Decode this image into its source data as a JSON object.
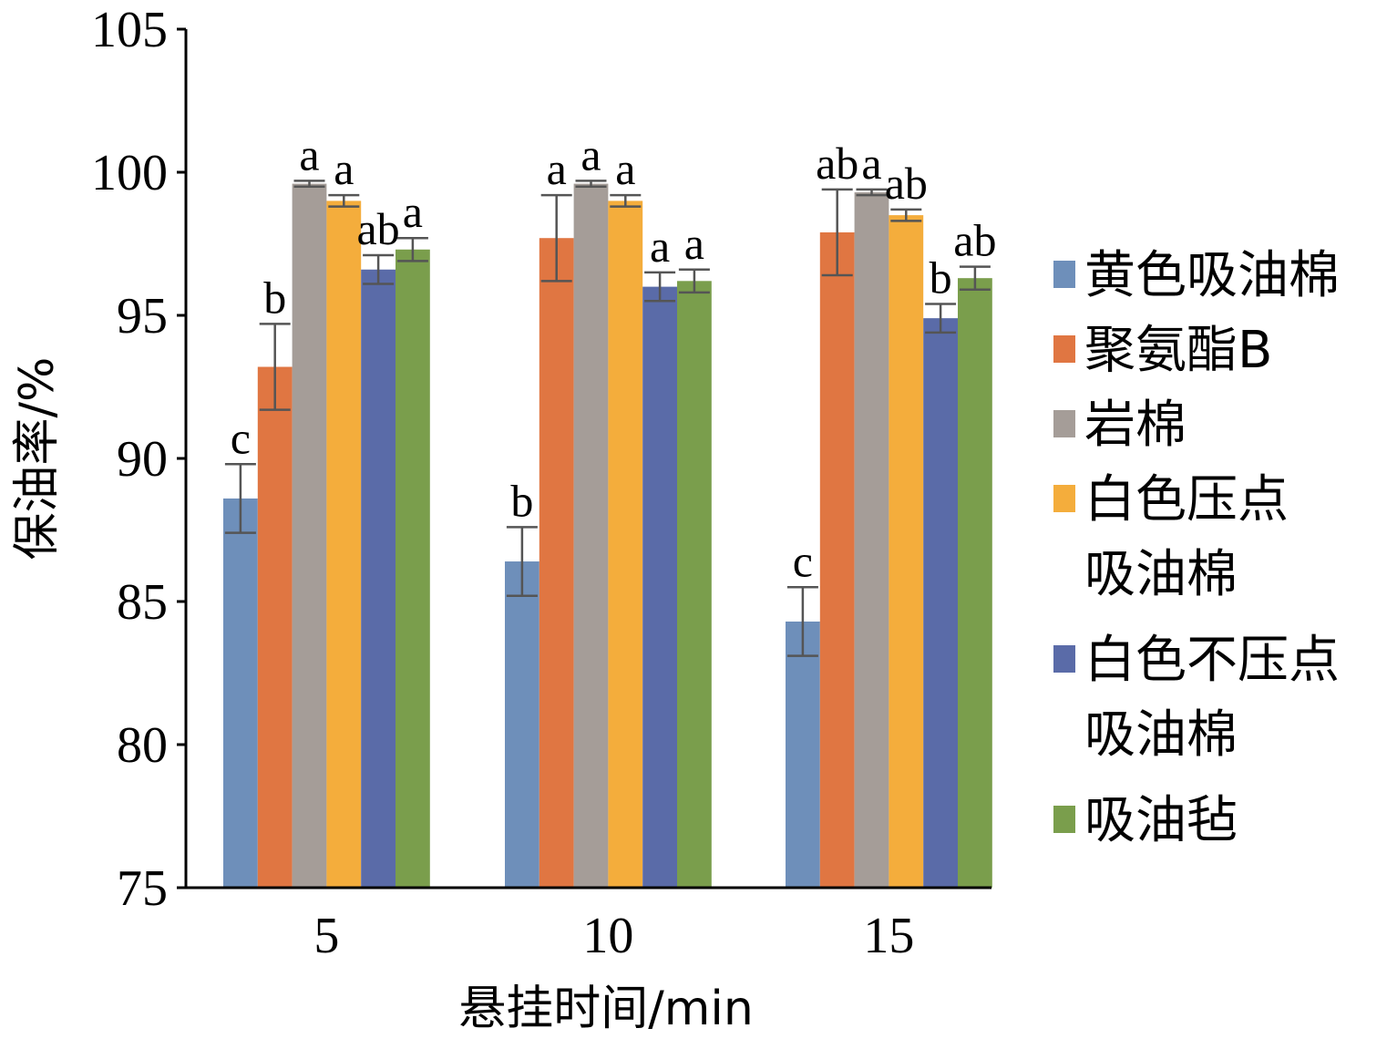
{
  "chart_data": {
    "type": "bar",
    "title": "",
    "xlabel": "悬挂时间/min",
    "ylabel": "保油率/%",
    "ylim": [
      75,
      105
    ],
    "yticks": [
      "75",
      "80",
      "85",
      "90",
      "95",
      "100",
      "105"
    ],
    "categories": [
      "5",
      "10",
      "15"
    ],
    "legend_position": "right",
    "grid": false,
    "series": [
      {
        "name": "黄色吸油棉",
        "color": "#6E8FBA",
        "values": [
          88.6,
          86.4,
          84.3
        ],
        "errors": [
          1.2,
          1.2,
          1.2
        ],
        "letters": [
          "c",
          "b",
          "c"
        ]
      },
      {
        "name": "聚氨酯B",
        "color": "#E07642",
        "values": [
          93.2,
          97.7,
          97.9
        ],
        "errors": [
          1.5,
          1.5,
          1.5
        ],
        "letters": [
          "b",
          "a",
          "ab"
        ]
      },
      {
        "name": "岩棉",
        "color": "#A59D98",
        "values": [
          99.6,
          99.6,
          99.3
        ],
        "errors": [
          0.1,
          0.1,
          0.1
        ],
        "letters": [
          "a",
          "a",
          "a"
        ]
      },
      {
        "name": "白色压点吸油棉",
        "legend_lines": [
          "白色压点",
          "吸油棉"
        ],
        "color": "#F4AD3C",
        "values": [
          99.0,
          99.0,
          98.5
        ],
        "errors": [
          0.2,
          0.2,
          0.2
        ],
        "letters": [
          "a",
          "a",
          "ab"
        ]
      },
      {
        "name": "白色不压点吸油棉",
        "legend_lines": [
          "白色不压点",
          "吸油棉"
        ],
        "color": "#5A6BA8",
        "values": [
          96.6,
          96.0,
          94.9
        ],
        "errors": [
          0.5,
          0.5,
          0.5
        ],
        "letters": [
          "ab",
          "a",
          "b"
        ]
      },
      {
        "name": "吸油毡",
        "color": "#7A9E4C",
        "values": [
          97.3,
          96.2,
          96.3
        ],
        "errors": [
          0.4,
          0.4,
          0.4
        ],
        "letters": [
          "a",
          "a",
          "ab"
        ]
      }
    ]
  }
}
